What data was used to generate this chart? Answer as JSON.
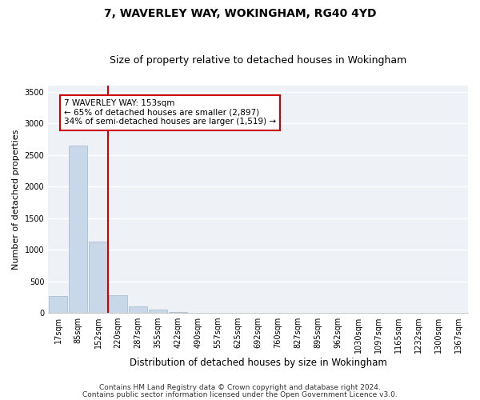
{
  "title1": "7, WAVERLEY WAY, WOKINGHAM, RG40 4YD",
  "title2": "Size of property relative to detached houses in Wokingham",
  "xlabel": "Distribution of detached houses by size in Wokingham",
  "ylabel": "Number of detached properties",
  "footer1": "Contains HM Land Registry data © Crown copyright and database right 2024.",
  "footer2": "Contains public sector information licensed under the Open Government Licence v3.0.",
  "annotation_line1": "7 WAVERLEY WAY: 153sqm",
  "annotation_line2": "← 65% of detached houses are smaller (2,897)",
  "annotation_line3": "34% of semi-detached houses are larger (1,519) →",
  "bar_color": "#c8d8e8",
  "bar_edge_color": "#a0b8cc",
  "vline_color": "#cc0000",
  "annotation_box_color": "#cc0000",
  "bg_color": "#eef2f7",
  "grid_color": "#ffffff",
  "categories": [
    "17sqm",
    "85sqm",
    "152sqm",
    "220sqm",
    "287sqm",
    "355sqm",
    "422sqm",
    "490sqm",
    "557sqm",
    "625sqm",
    "692sqm",
    "760sqm",
    "827sqm",
    "895sqm",
    "962sqm",
    "1030sqm",
    "1097sqm",
    "1165sqm",
    "1232sqm",
    "1300sqm",
    "1367sqm"
  ],
  "values": [
    270,
    2650,
    1130,
    280,
    100,
    55,
    20,
    5,
    0,
    0,
    0,
    0,
    0,
    0,
    0,
    0,
    0,
    0,
    0,
    0,
    0
  ],
  "ylim": [
    0,
    3600
  ],
  "yticks": [
    0,
    500,
    1000,
    1500,
    2000,
    2500,
    3000,
    3500
  ],
  "title1_fontsize": 10,
  "title2_fontsize": 9,
  "xlabel_fontsize": 8.5,
  "ylabel_fontsize": 8,
  "tick_fontsize": 7,
  "annotation_fontsize": 7.5,
  "footer_fontsize": 6.5
}
